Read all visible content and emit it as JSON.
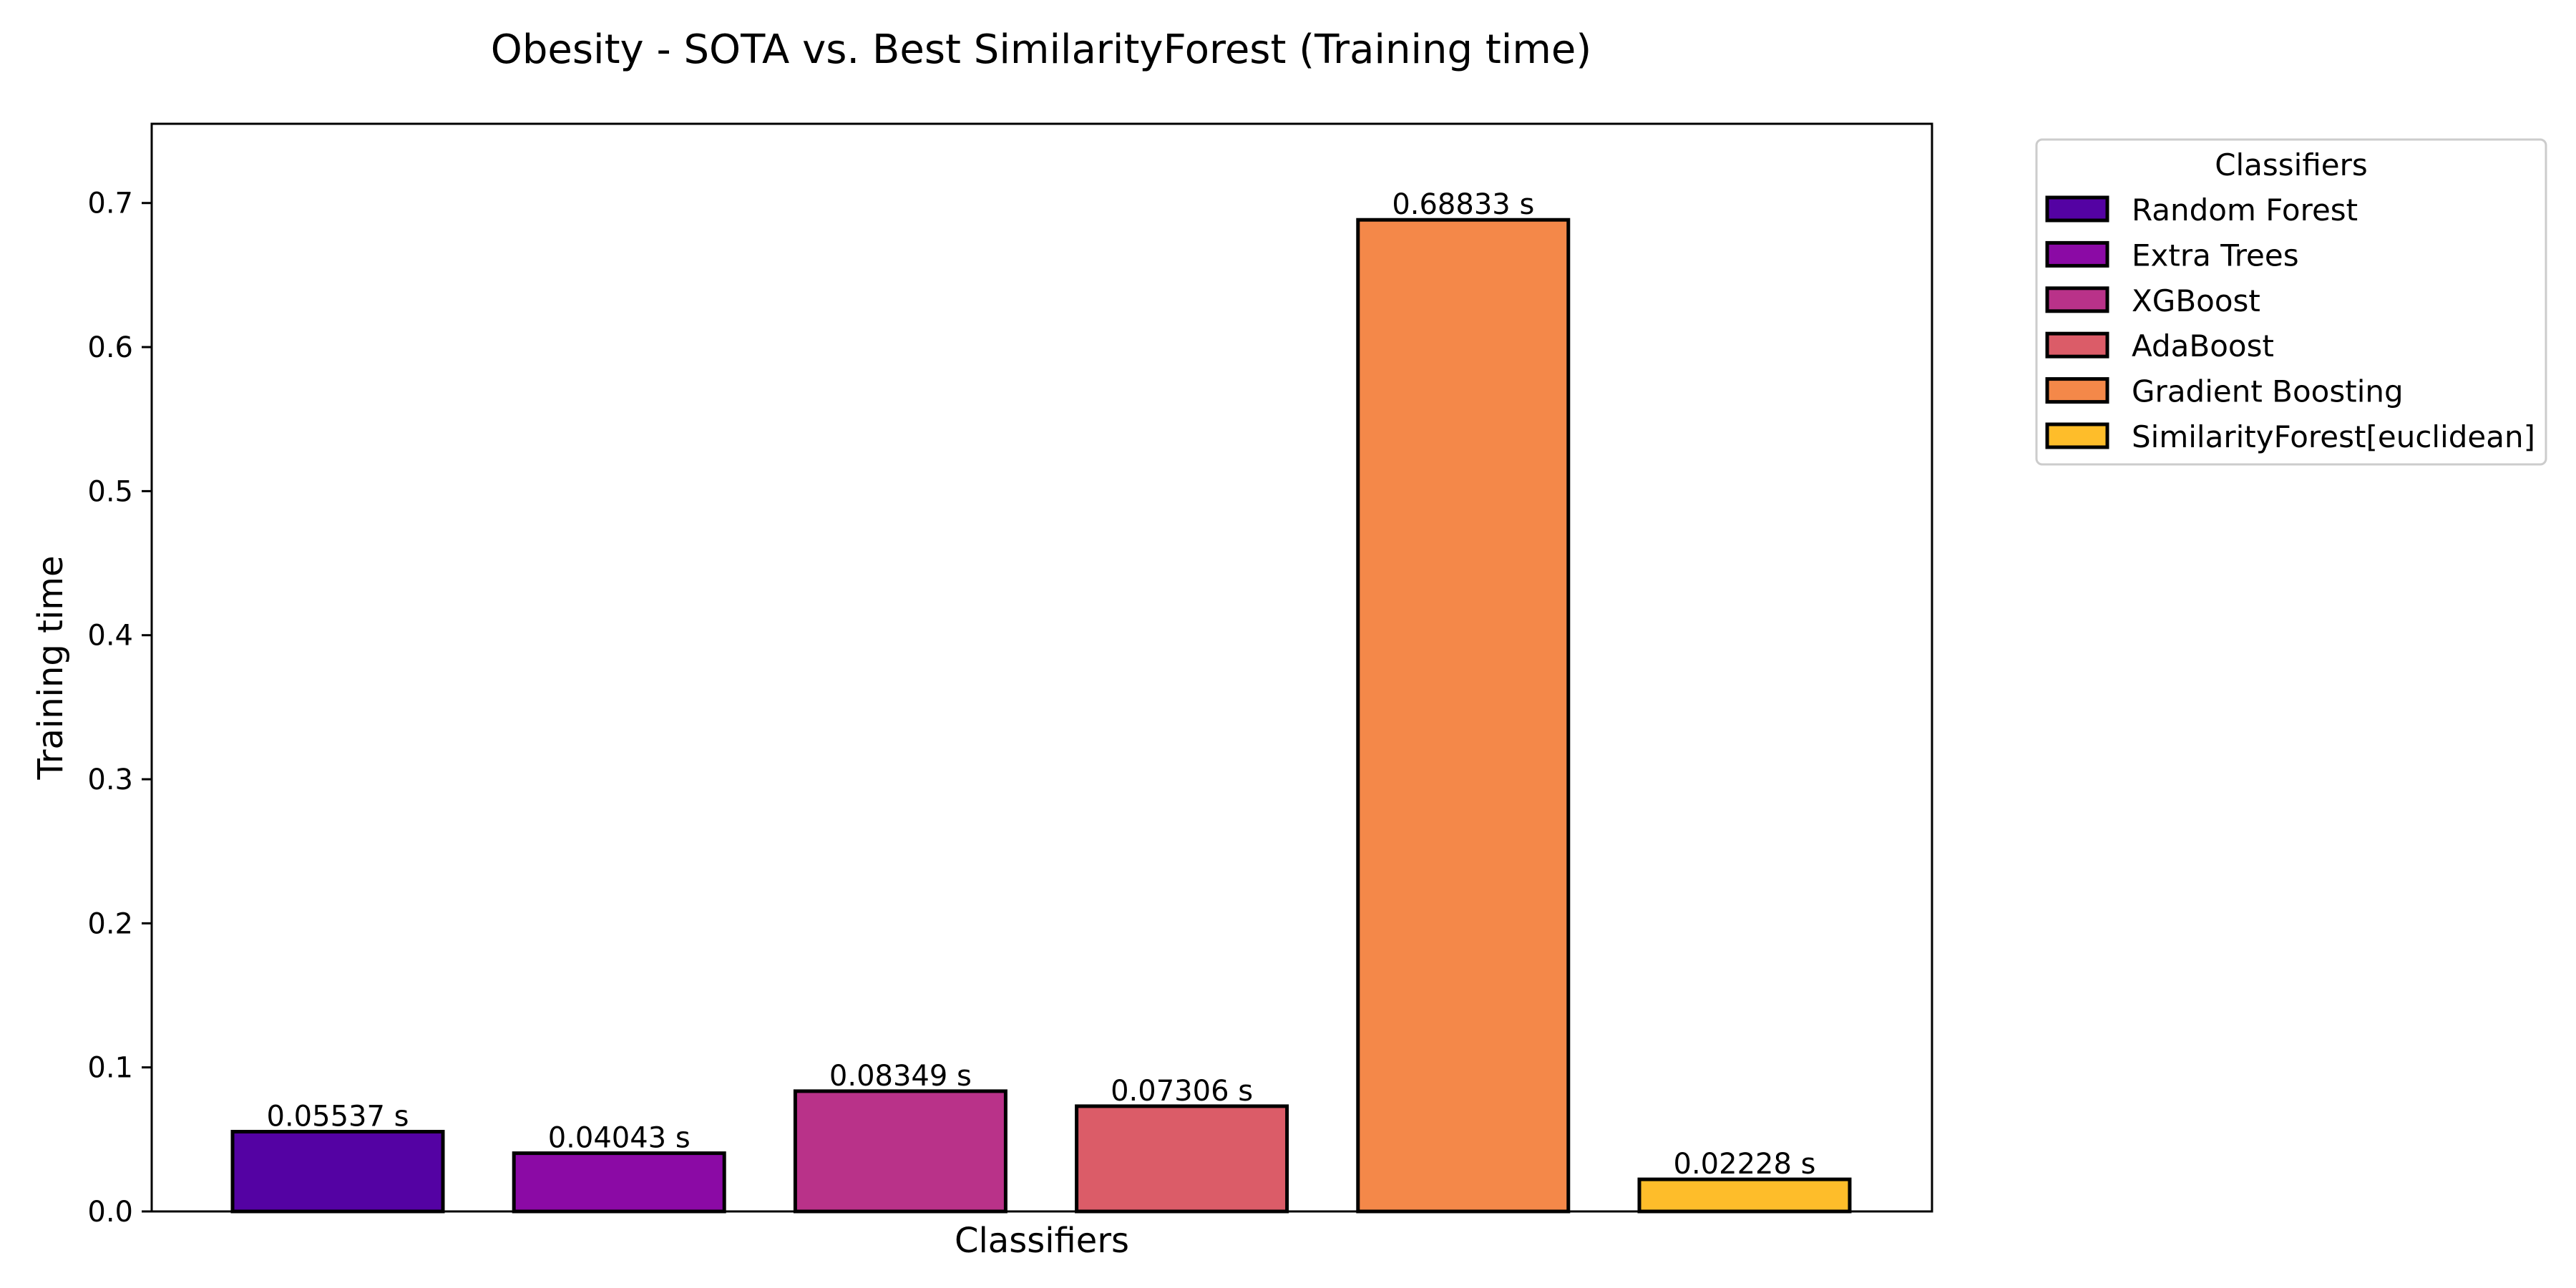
{
  "chart_data": {
    "type": "bar",
    "title": "Obesity - SOTA vs. Best SimilarityForest (Training time)",
    "xlabel": "Classifiers",
    "ylabel": "Training time",
    "ylim": [
      0,
      0.755
    ],
    "yticks": [
      "0.0",
      "0.1",
      "0.2",
      "0.3",
      "0.4",
      "0.5",
      "0.6",
      "0.7"
    ],
    "grid": false,
    "legend": {
      "title": "Classifiers",
      "placement": "outside-top-right"
    },
    "categories": [
      "Random Forest",
      "Extra Trees",
      "XGBoost",
      "AdaBoost",
      "Gradient Boosting",
      "SimilarityForest[euclidean]"
    ],
    "values": [
      0.05537,
      0.04043,
      0.08349,
      0.07306,
      0.68833,
      0.02228
    ],
    "value_labels": [
      "0.05537 s",
      "0.04043 s",
      "0.08349 s",
      "0.07306 s",
      "0.68833 s",
      "0.02228 s"
    ],
    "colors": [
      "#5402a3",
      "#8b0aa5",
      "#b93289",
      "#db5c68",
      "#f48849",
      "#febd2a"
    ]
  }
}
